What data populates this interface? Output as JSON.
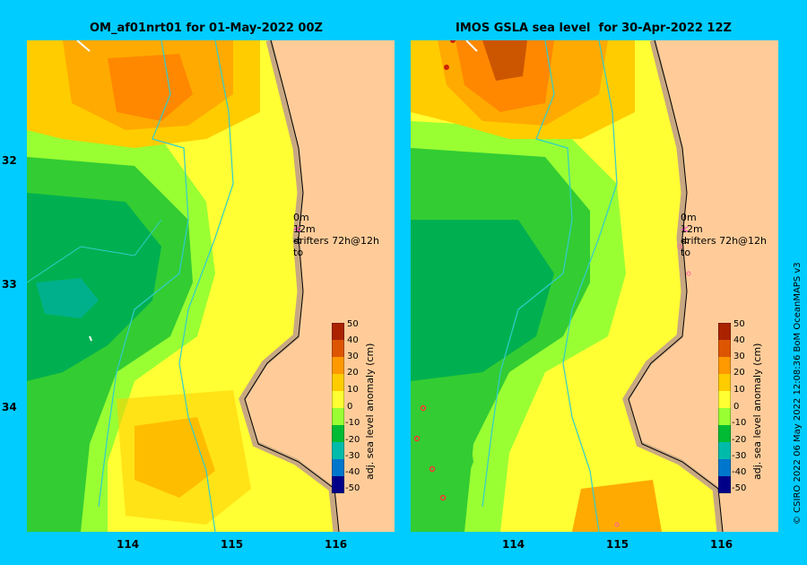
{
  "panels": [
    {
      "title": "OM_af01nrt01 for 01-May-2022 00Z",
      "drifter_line1_depth": "0m",
      "drifter_line1_text": "drifters 72h@12h",
      "drifter_line2_depth": "12m",
      "drifter_line2_text": "to"
    },
    {
      "title": "IMOS GSLA sea level  for 30-Apr-2022 12Z",
      "drifter_line1_depth": "0m",
      "drifter_line1_text": "drifters 72h@12h",
      "drifter_line2_depth": "12m",
      "drifter_line2_text": "to"
    }
  ],
  "axes": {
    "y_ticks": [
      "32",
      "33",
      "34"
    ],
    "x_ticks": [
      "114",
      "115",
      "116"
    ]
  },
  "colorbar": {
    "label": "adj. sea level anomaly (cm)",
    "ticks": [
      "50",
      "40",
      "30",
      "20",
      "10",
      "0",
      "-10",
      "-20",
      "-30",
      "-40",
      "-50"
    ]
  },
  "credit": "© CSIRO 2022   06 May 2022 12:08:36 BoM OceanMAPS v3",
  "colors": {
    "background": "#00ccff",
    "land": "#ffcc99",
    "shelf": "#c8a882",
    "drifter_pink": "#ff33cc"
  },
  "icons": [
    "arrow-icon",
    "drifter-marker-icon"
  ]
}
